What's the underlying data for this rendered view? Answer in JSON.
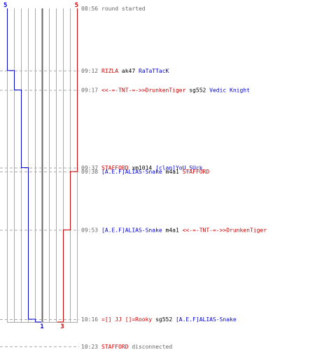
{
  "chart_data": {
    "type": "line",
    "colors": {
      "blue": "#0000cc",
      "red": "#cc0000",
      "time": "#666666",
      "text": "#000000",
      "grid": "#aaaaaa",
      "center": "#666666",
      "dash": "#aaaaaa"
    },
    "score_top": {
      "blue": "5",
      "red": "5"
    },
    "score_bottom": {
      "blue": "1",
      "red": "3"
    },
    "blue_steps": [
      {
        "time": "08:56",
        "value": 5
      },
      {
        "time": "09:12",
        "value": 4
      },
      {
        "time": "09:17",
        "value": 3
      },
      {
        "time": "09:37",
        "value": 2
      },
      {
        "time": "10:16",
        "value": 1
      }
    ],
    "red_steps": [
      {
        "time": "08:56",
        "value": 5
      },
      {
        "time": "09:38",
        "value": 4
      },
      {
        "time": "09:53",
        "value": 3
      }
    ],
    "events": [
      {
        "time": "08:56",
        "parts": [
          {
            "text": "round started",
            "color": "#666666"
          }
        ]
      },
      {
        "time": "09:12",
        "parts": [
          {
            "text": "RIZLA",
            "color": "#cc0000"
          },
          {
            "text": "ak47",
            "color": "#000000"
          },
          {
            "text": "RaTaTTacK",
            "color": "#0000cc"
          }
        ]
      },
      {
        "time": "09:17",
        "parts": [
          {
            "text": "<<-=-TNT-=->>DrunkenTiger",
            "color": "#cc0000"
          },
          {
            "text": "sg552",
            "color": "#000000"
          },
          {
            "text": "Vedic Knight",
            "color": "#0000cc"
          }
        ]
      },
      {
        "time": "09:37",
        "parts": [
          {
            "text": "STAFFORD",
            "color": "#cc0000"
          },
          {
            "text": "xm1014",
            "color": "#000000"
          },
          {
            "text": "[clan]YoU_SUck",
            "color": "#0000cc"
          }
        ]
      },
      {
        "time": "09:38",
        "parts": [
          {
            "text": "[A.E.F]ALIAS-Snake",
            "color": "#0000cc"
          },
          {
            "text": "m4a1",
            "color": "#000000"
          },
          {
            "text": "STAFFORD",
            "color": "#cc0000"
          }
        ]
      },
      {
        "time": "09:53",
        "parts": [
          {
            "text": "[A.E.F]ALIAS-Snake",
            "color": "#0000cc"
          },
          {
            "text": "m4a1",
            "color": "#000000"
          },
          {
            "text": "<<-=-TNT-=->>DrunkenTiger",
            "color": "#cc0000"
          }
        ]
      },
      {
        "time": "10:16",
        "parts": [
          {
            "text": "=[] JJ []=Rooky",
            "color": "#cc0000"
          },
          {
            "text": "sg552",
            "color": "#000000"
          },
          {
            "text": "[A.E.F]ALIAS-Snake",
            "color": "#0000cc"
          }
        ]
      },
      {
        "time": "10:23",
        "parts": [
          {
            "text": "STAFFORD",
            "color": "#cc0000"
          },
          {
            "text": "disconnected",
            "color": "#666666"
          }
        ]
      }
    ]
  }
}
